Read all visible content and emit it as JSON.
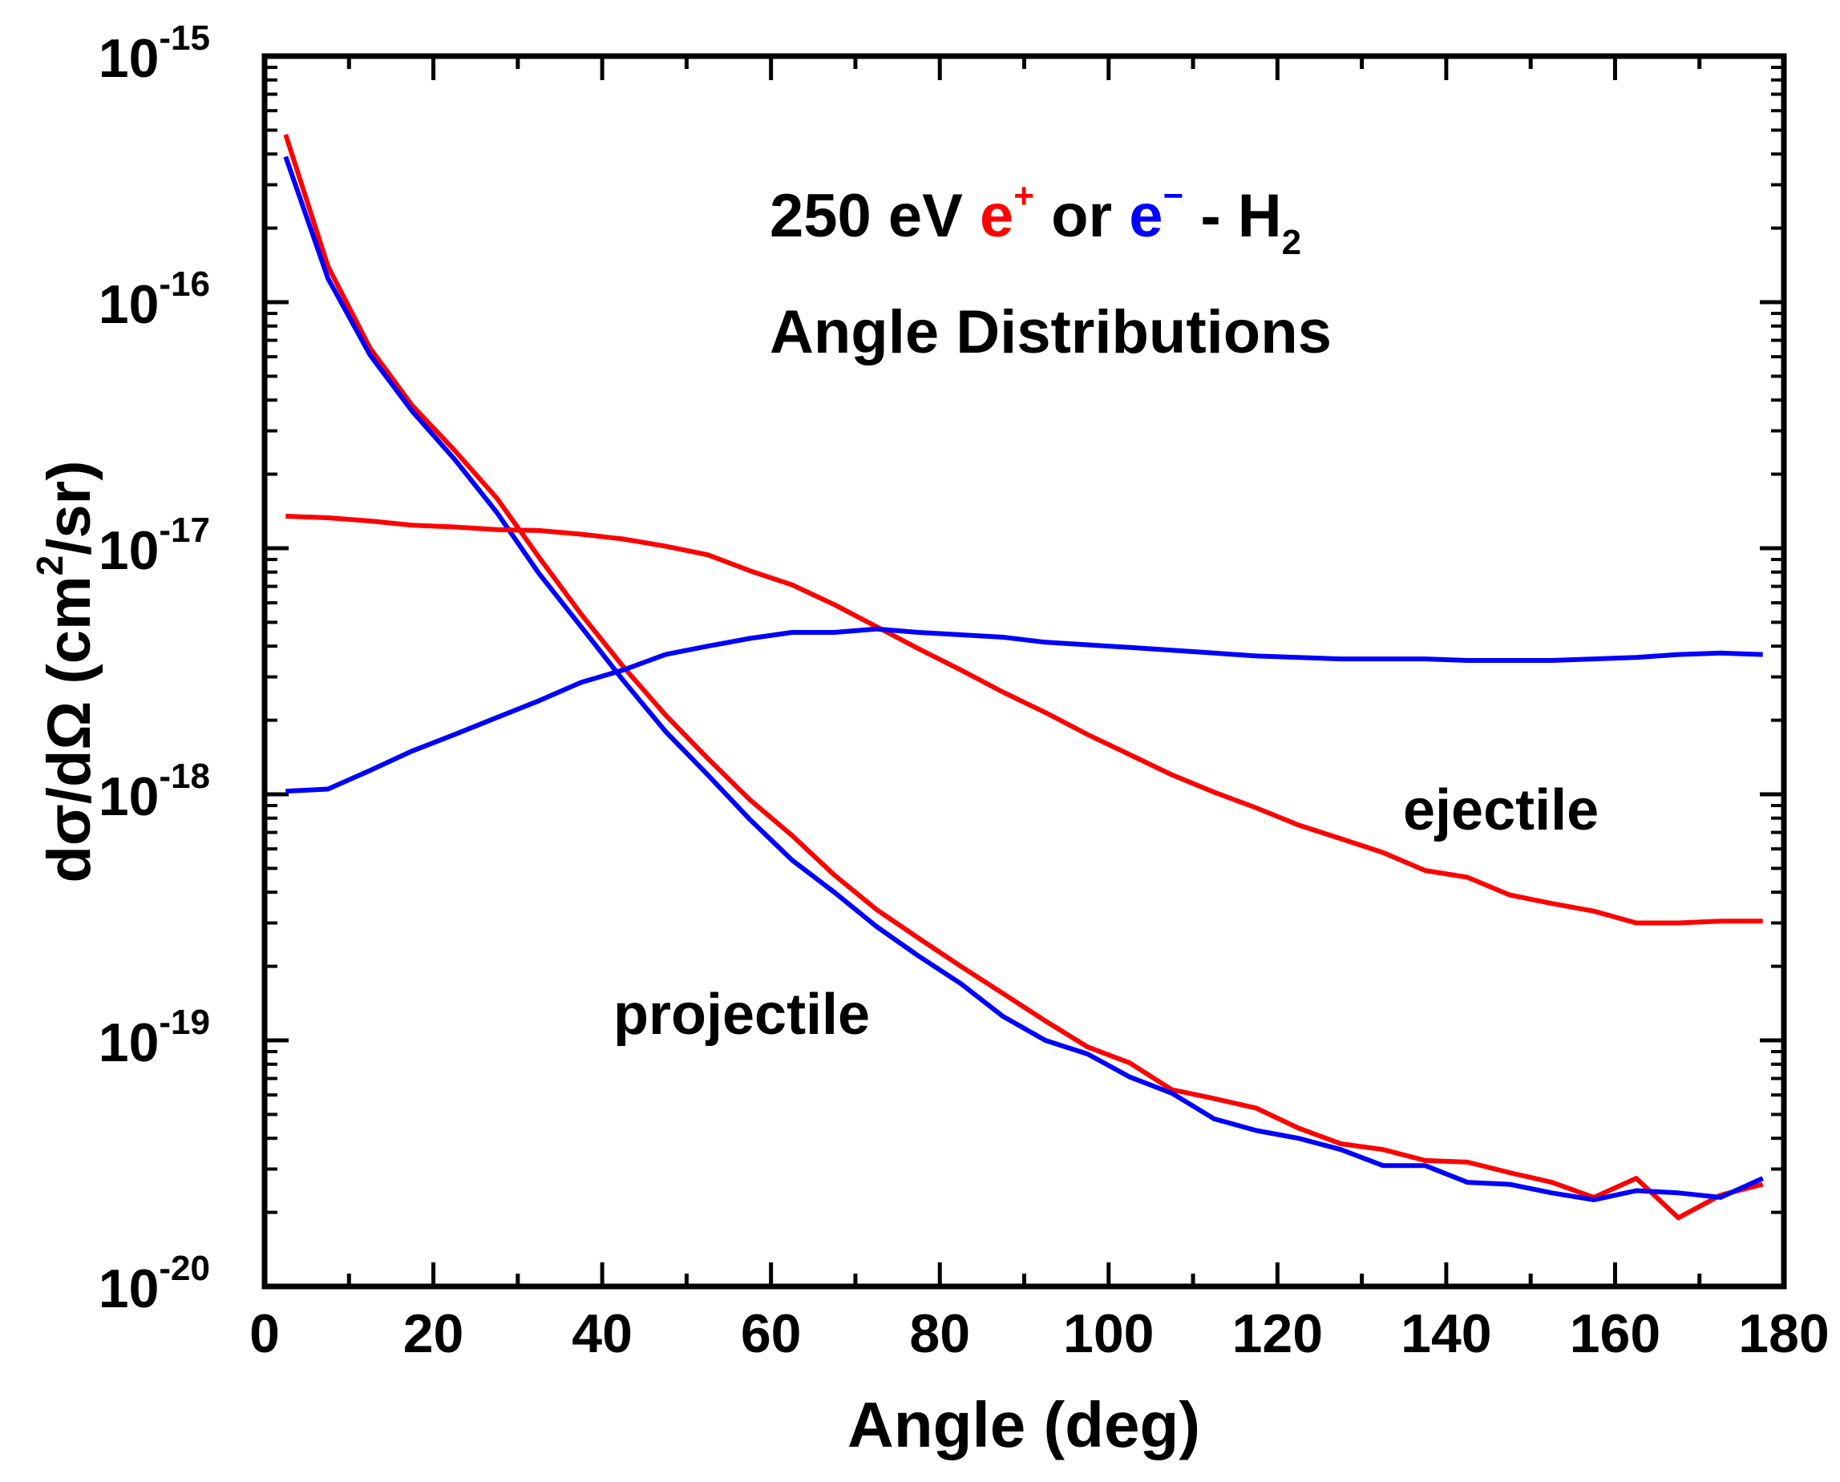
{
  "chart_data": {
    "type": "line",
    "title_line1": {
      "prefix": "250 eV ",
      "positron": "e",
      "positron_sup": "+",
      "middle": " or ",
      "electron": "e",
      "electron_sup": "−",
      "suffix": " - H",
      "suffix_sub": "2"
    },
    "title_line2": "Angle Distributions",
    "xlabel": "Angle (deg)",
    "ylabel": {
      "main": "dσ/dΩ (cm",
      "sup": "2",
      "end": "/sr)"
    },
    "xlim": [
      0,
      180
    ],
    "ylim": [
      1e-20,
      1e-15
    ],
    "yscale": "log",
    "x_ticks": [
      "0",
      "20",
      "40",
      "60",
      "80",
      "100",
      "120",
      "140",
      "160",
      "180"
    ],
    "y_ticks": [
      {
        "base": "10",
        "exp": "-20"
      },
      {
        "base": "10",
        "exp": "-19"
      },
      {
        "base": "10",
        "exp": "-18"
      },
      {
        "base": "10",
        "exp": "-17"
      },
      {
        "base": "10",
        "exp": "-16"
      },
      {
        "base": "10",
        "exp": "-15"
      }
    ],
    "annotations": {
      "ejectile": "ejectile",
      "projectile": "projectile"
    },
    "colors": {
      "positron": "#ff0000",
      "electron": "#0000ff"
    },
    "series": [
      {
        "group": "projectile",
        "particle": "positron",
        "color": "#ff0000",
        "points": [
          [
            2.5,
            4.8e-16
          ],
          [
            7.5,
            1.4e-16
          ],
          [
            12.5,
            6.5e-17
          ],
          [
            17.5,
            3.8e-17
          ],
          [
            22.5,
            2.5e-17
          ],
          [
            27.5,
            1.6e-17
          ],
          [
            32.5,
            9.2e-18
          ],
          [
            37.5,
            5.4e-18
          ],
          [
            42.5,
            3.3e-18
          ],
          [
            47.5,
            2.1e-18
          ],
          [
            52.5,
            1.4e-18
          ],
          [
            57.5,
            9.5e-19
          ],
          [
            62.5,
            6.8e-19
          ],
          [
            67.5,
            4.7e-19
          ],
          [
            72.5,
            3.4e-19
          ],
          [
            77.5,
            2.6e-19
          ],
          [
            82.5,
            2e-19
          ],
          [
            87.5,
            1.55e-19
          ],
          [
            92.5,
            1.2e-19
          ],
          [
            97.5,
            9.4e-20
          ],
          [
            102.5,
            8.1e-20
          ],
          [
            107.5,
            6.3e-20
          ],
          [
            112.5,
            5.8e-20
          ],
          [
            117.5,
            5.3e-20
          ],
          [
            122.5,
            4.4e-20
          ],
          [
            127.5,
            3.8e-20
          ],
          [
            132.5,
            3.6e-20
          ],
          [
            137.5,
            3.25e-20
          ],
          [
            142.5,
            3.2e-20
          ],
          [
            147.5,
            2.9e-20
          ],
          [
            152.5,
            2.65e-20
          ],
          [
            157.5,
            2.3e-20
          ],
          [
            162.5,
            2.75e-20
          ],
          [
            167.5,
            1.9e-20
          ],
          [
            172.5,
            2.35e-20
          ],
          [
            177.5,
            2.6e-20
          ]
        ]
      },
      {
        "group": "projectile",
        "particle": "electron",
        "color": "#0000ff",
        "points": [
          [
            2.5,
            3.9e-16
          ],
          [
            7.5,
            1.25e-16
          ],
          [
            12.5,
            6.1e-17
          ],
          [
            17.5,
            3.6e-17
          ],
          [
            22.5,
            2.3e-17
          ],
          [
            27.5,
            1.4e-17
          ],
          [
            32.5,
            7.9e-18
          ],
          [
            37.5,
            4.8e-18
          ],
          [
            42.5,
            2.9e-18
          ],
          [
            47.5,
            1.8e-18
          ],
          [
            52.5,
            1.2e-18
          ],
          [
            57.5,
            7.9e-19
          ],
          [
            62.5,
            5.4e-19
          ],
          [
            67.5,
            4e-19
          ],
          [
            72.5,
            2.9e-19
          ],
          [
            77.5,
            2.2e-19
          ],
          [
            82.5,
            1.7e-19
          ],
          [
            87.5,
            1.25e-19
          ],
          [
            92.5,
            1e-19
          ],
          [
            97.5,
            8.8e-20
          ],
          [
            102.5,
            7.1e-20
          ],
          [
            107.5,
            6.1e-20
          ],
          [
            112.5,
            4.8e-20
          ],
          [
            117.5,
            4.3e-20
          ],
          [
            122.5,
            4e-20
          ],
          [
            127.5,
            3.6e-20
          ],
          [
            132.5,
            3.1e-20
          ],
          [
            137.5,
            3.1e-20
          ],
          [
            142.5,
            2.65e-20
          ],
          [
            147.5,
            2.6e-20
          ],
          [
            152.5,
            2.4e-20
          ],
          [
            157.5,
            2.25e-20
          ],
          [
            162.5,
            2.45e-20
          ],
          [
            167.5,
            2.4e-20
          ],
          [
            172.5,
            2.3e-20
          ],
          [
            177.5,
            2.75e-20
          ]
        ]
      },
      {
        "group": "ejectile",
        "particle": "positron",
        "color": "#ff0000",
        "points": [
          [
            2.5,
            1.35e-17
          ],
          [
            7.5,
            1.33e-17
          ],
          [
            12.5,
            1.29e-17
          ],
          [
            17.5,
            1.24e-17
          ],
          [
            22.5,
            1.22e-17
          ],
          [
            27.5,
            1.19e-17
          ],
          [
            32.5,
            1.18e-17
          ],
          [
            37.5,
            1.14e-17
          ],
          [
            42.5,
            1.09e-17
          ],
          [
            47.5,
            1.02e-17
          ],
          [
            52.5,
            9.4e-18
          ],
          [
            57.5,
            8.1e-18
          ],
          [
            62.5,
            7.1e-18
          ],
          [
            67.5,
            5.9e-18
          ],
          [
            72.5,
            4.8e-18
          ],
          [
            77.5,
            3.9e-18
          ],
          [
            82.5,
            3.2e-18
          ],
          [
            87.5,
            2.6e-18
          ],
          [
            92.5,
            2.15e-18
          ],
          [
            97.5,
            1.75e-18
          ],
          [
            102.5,
            1.45e-18
          ],
          [
            107.5,
            1.2e-18
          ],
          [
            112.5,
            1.02e-18
          ],
          [
            117.5,
            8.8e-19
          ],
          [
            122.5,
            7.5e-19
          ],
          [
            127.5,
            6.6e-19
          ],
          [
            132.5,
            5.8e-19
          ],
          [
            137.5,
            4.9e-19
          ],
          [
            142.5,
            4.6e-19
          ],
          [
            147.5,
            3.9e-19
          ],
          [
            152.5,
            3.6e-19
          ],
          [
            157.5,
            3.35e-19
          ],
          [
            162.5,
            3e-19
          ],
          [
            167.5,
            3e-19
          ],
          [
            172.5,
            3.05e-19
          ],
          [
            177.5,
            3.05e-19
          ]
        ]
      },
      {
        "group": "ejectile",
        "particle": "electron",
        "color": "#0000ff",
        "points": [
          [
            2.5,
            1.03e-18
          ],
          [
            7.5,
            1.05e-18
          ],
          [
            12.5,
            1.25e-18
          ],
          [
            17.5,
            1.5e-18
          ],
          [
            22.5,
            1.75e-18
          ],
          [
            27.5,
            2.05e-18
          ],
          [
            32.5,
            2.4e-18
          ],
          [
            37.5,
            2.85e-18
          ],
          [
            42.5,
            3.2e-18
          ],
          [
            47.5,
            3.7e-18
          ],
          [
            52.5,
            4e-18
          ],
          [
            57.5,
            4.3e-18
          ],
          [
            62.5,
            4.55e-18
          ],
          [
            67.5,
            4.55e-18
          ],
          [
            72.5,
            4.7e-18
          ],
          [
            77.5,
            4.55e-18
          ],
          [
            82.5,
            4.45e-18
          ],
          [
            87.5,
            4.35e-18
          ],
          [
            92.5,
            4.15e-18
          ],
          [
            97.5,
            4.05e-18
          ],
          [
            102.5,
            3.95e-18
          ],
          [
            107.5,
            3.85e-18
          ],
          [
            112.5,
            3.75e-18
          ],
          [
            117.5,
            3.65e-18
          ],
          [
            122.5,
            3.6e-18
          ],
          [
            127.5,
            3.55e-18
          ],
          [
            132.5,
            3.55e-18
          ],
          [
            137.5,
            3.55e-18
          ],
          [
            142.5,
            3.5e-18
          ],
          [
            147.5,
            3.5e-18
          ],
          [
            152.5,
            3.5e-18
          ],
          [
            157.5,
            3.55e-18
          ],
          [
            162.5,
            3.6e-18
          ],
          [
            167.5,
            3.7e-18
          ],
          [
            172.5,
            3.75e-18
          ],
          [
            177.5,
            3.7e-18
          ]
        ]
      }
    ]
  }
}
